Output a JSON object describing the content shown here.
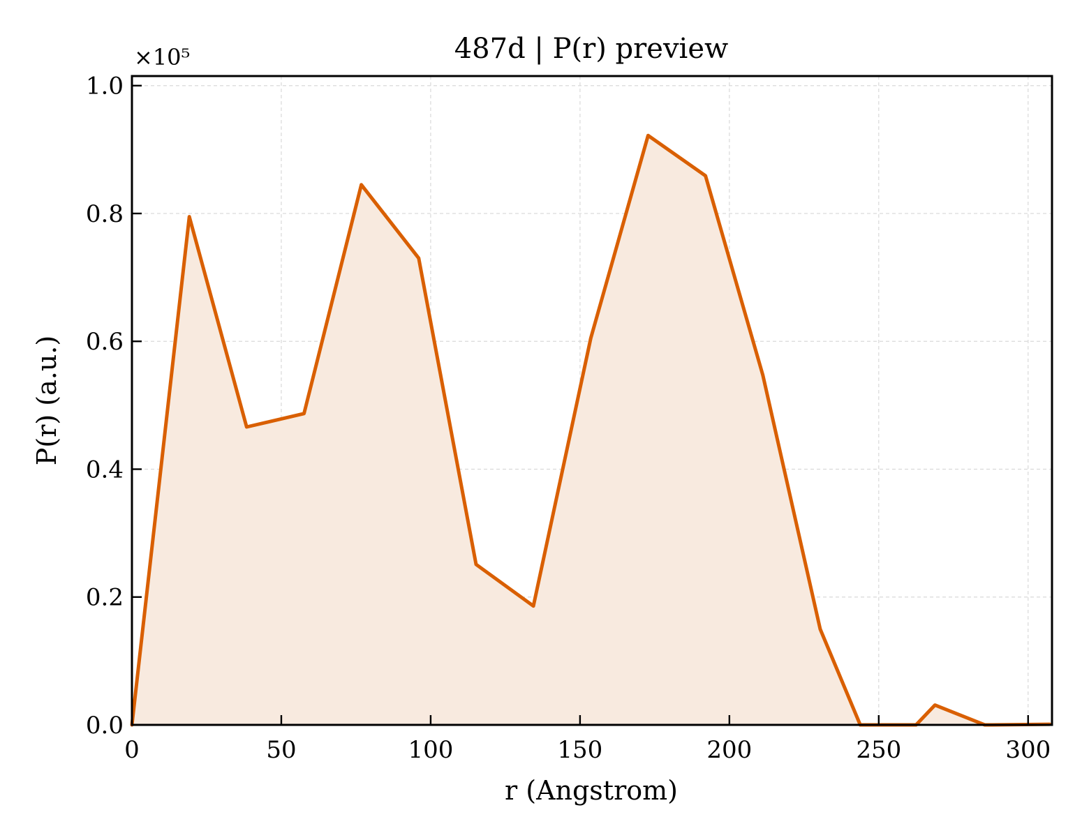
{
  "chart_data": {
    "type": "area",
    "title": "487d | P(r) preview",
    "xlabel": "r (Angstrom)",
    "ylabel": "P(r) (a.u.)",
    "y_multiplier_label": "×10⁵",
    "x": [
      0,
      19.2,
      38.4,
      57.6,
      76.8,
      96,
      115.2,
      134.4,
      153.6,
      172.8,
      192,
      211.2,
      230.4,
      243.8,
      249.6,
      262.5,
      268.8,
      285.5,
      288,
      307.2
    ],
    "values": [
      0,
      0.795,
      0.466,
      0.487,
      0.845,
      0.73,
      0.251,
      0.186,
      0.605,
      0.922,
      0.859,
      0.547,
      0.15,
      0,
      0,
      0,
      0.031,
      0,
      0,
      0.001
    ],
    "xlim": [
      0,
      308
    ],
    "ylim": [
      0,
      1.015
    ],
    "xticks": [
      "0",
      "50",
      "100",
      "150",
      "200",
      "250",
      "300"
    ],
    "yticks": [
      "0.0",
      "0.2",
      "0.4",
      "0.6",
      "0.8",
      "1.0"
    ],
    "grid": true,
    "line_color": "#d95f02",
    "fill_color": "#f8eadf"
  }
}
